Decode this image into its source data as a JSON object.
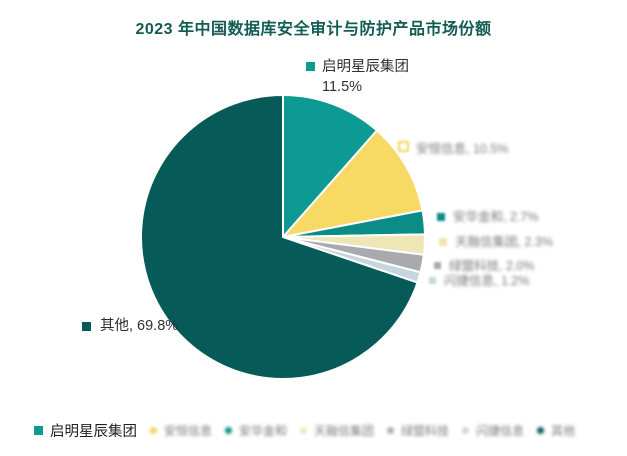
{
  "title": "2023 年中国数据库安全审计与防护产品市场份额",
  "colors": {
    "title_text": "#135c54",
    "label_text": "#2f2f2f",
    "blurred_text": "#7a7a7a",
    "slice_stroke": "#ffffff"
  },
  "chart_data": {
    "type": "pie",
    "title": "2023 年中国数据库安全审计与防护产品市场份额",
    "start_angle_deg": 0,
    "direction": "clockwise",
    "legend_position": "bottom",
    "slices": [
      {
        "name": "启明星辰集团",
        "value": 11.5,
        "label": "启明星辰集团 11.5%",
        "color": "#0d9a92"
      },
      {
        "name": "安恒信息",
        "value": 10.5,
        "label": "安恒信息, 10.5%",
        "color": "#f7d964"
      },
      {
        "name": "安华金和",
        "value": 2.7,
        "label": "安华金和, 2.7%",
        "color": "#0b8c86"
      },
      {
        "name": "天融信集团",
        "value": 2.3,
        "label": "天融信集团, 2.3%",
        "color": "#eee6b5"
      },
      {
        "name": "绿盟科技",
        "value": 2.0,
        "label": "绿盟科技, 2.0%",
        "color": "#a8aaad"
      },
      {
        "name": "闪捷信息",
        "value": 1.2,
        "label": "闪捷信息, 1.2%",
        "color": "#c4d7de"
      },
      {
        "name": "其他",
        "value": 69.8,
        "label": "其他, 69.8%",
        "color": "#065a58"
      }
    ]
  },
  "callouts": {
    "qiming": {
      "line1": "启明星辰集团",
      "line2": "11.5%"
    },
    "anheng": {
      "text": "安恒信息, 10.5%"
    },
    "anhua": {
      "text": "安华金和, 2.7%"
    },
    "tianrongxin": {
      "text": "天融信集团, 2.3%"
    },
    "lvmeng": {
      "text": "绿盟科技, 2.0%"
    },
    "shanjie": {
      "text": "闪捷信息, 1.2%"
    },
    "qita": {
      "text": "其他, 69.8%"
    }
  },
  "legend": {
    "items": [
      {
        "label": "启明星辰集团",
        "color": "#0d9a92"
      },
      {
        "label": "安恒信息",
        "color": "#f2d45c"
      },
      {
        "label": "安华金和",
        "color": "#0b8c86"
      },
      {
        "label": "天融信集团",
        "color": "#eee6b5"
      },
      {
        "label": "绿盟科技",
        "color": "#a8aaad"
      },
      {
        "label": "闪捷信息",
        "color": "#c4d7de"
      },
      {
        "label": "其他",
        "color": "#065a58"
      }
    ]
  }
}
